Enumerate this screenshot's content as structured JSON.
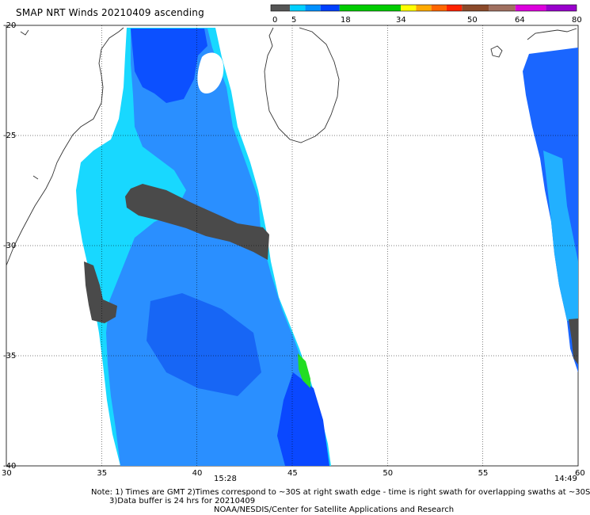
{
  "title": "SMAP NRT Winds 20210409 ascending",
  "colorbar": {
    "ticks": [
      "0",
      "5",
      "18",
      "34",
      "50",
      "64",
      "80"
    ],
    "segments": [
      {
        "from": 0,
        "to": 5,
        "color": "#555555"
      },
      {
        "from": 5,
        "to": 18,
        "color": "#00a8ff"
      },
      {
        "from": 18,
        "to": 34,
        "color": "#00cc00"
      },
      {
        "from": 34,
        "to": 50,
        "color": "#ff8800"
      },
      {
        "from": 50,
        "to": 64,
        "color": "#7a4a2a"
      },
      {
        "from": 64,
        "to": 80,
        "color": "#cc00cc"
      }
    ]
  },
  "axes": {
    "lon_ticks": [
      "30",
      "35",
      "40",
      "45",
      "50",
      "55",
      "60"
    ],
    "lat_ticks": [
      "-20",
      "-25",
      "-30",
      "-35",
      "-40"
    ]
  },
  "time_labels": {
    "left": "15:28",
    "right": "14:49"
  },
  "footer": {
    "note_line1": "Note: 1) Times are GMT 2)Times correspond to ~30S at right swath edge - time is right swath for overlapping swaths at ~30S",
    "note_line2": "3)Data buffer is 24 hrs for 20210409",
    "credit": "NOAA/NESDIS/Center for Satellite Applications and Research"
  },
  "colors": {
    "land_outline": "#333333",
    "low_wind": "#555555",
    "cyan": "#00e5ff",
    "mid_blue": "#1188ff",
    "deep_blue": "#0040ff",
    "green": "#22dd22"
  }
}
